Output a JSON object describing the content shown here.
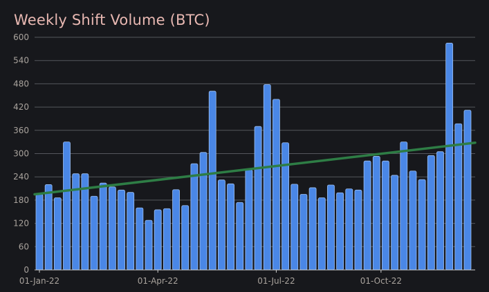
{
  "colors": {
    "background": "#17181c",
    "bar": "#4a87e6",
    "bar_edge": "#9dc0f2",
    "trend": "#2e7d45",
    "grid": "#55575d",
    "title": "#e8b8b2",
    "tick": "#a9a39d"
  },
  "chart_data": {
    "type": "bar",
    "title": "Weekly Shift Volume (BTC)",
    "xlabel": "",
    "ylabel": "",
    "ylim": [
      0,
      600
    ],
    "y_ticks": [
      0,
      60,
      120,
      180,
      240,
      300,
      360,
      420,
      480,
      540,
      600
    ],
    "x_ticks": [
      {
        "label": "01-Jan-22",
        "week_index": 0
      },
      {
        "label": "01-Apr-22",
        "week_index": 13
      },
      {
        "label": "01-Jul-22",
        "week_index": 26
      },
      {
        "label": "01-Oct-22",
        "week_index": 37.5
      }
    ],
    "grid": true,
    "legend": "none",
    "series": [
      {
        "values": [
          195,
          220,
          186,
          330,
          248,
          248,
          190,
          224,
          214,
          206,
          200,
          160,
          128,
          155,
          158,
          207,
          166,
          274,
          303,
          461,
          232,
          222,
          174,
          258,
          370,
          478,
          440,
          328,
          221,
          195,
          212,
          186,
          219,
          199,
          209,
          206,
          281,
          293,
          281,
          244,
          330,
          255,
          233,
          295,
          305,
          585,
          377,
          412
        ]
      }
    ],
    "trendline": {
      "start": 195,
      "end": 328
    }
  }
}
